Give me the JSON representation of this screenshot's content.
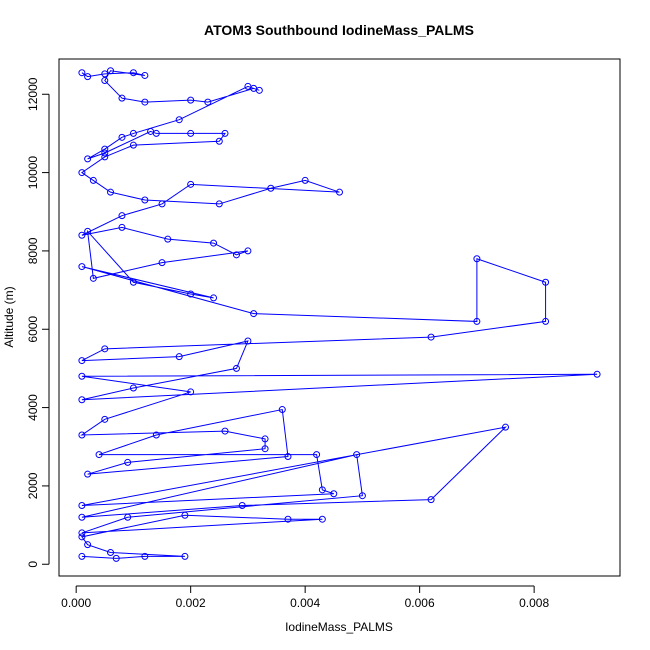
{
  "chart_data": {
    "type": "line",
    "title": "ATOM3 Southbound IodineMass_PALMS",
    "xlabel": "IodineMass_PALMS",
    "ylabel": "Altitude (m)",
    "xlim": [
      -0.0003,
      0.0095
    ],
    "ylim": [
      -300,
      12900
    ],
    "x_ticks": [
      0.0,
      0.002,
      0.004,
      0.006,
      0.008
    ],
    "x_tick_labels": [
      "0.000",
      "0.002",
      "0.004",
      "0.006",
      "0.008"
    ],
    "y_ticks": [
      0,
      2000,
      4000,
      6000,
      8000,
      10000,
      12000
    ],
    "y_tick_labels": [
      "0",
      "2000",
      "4000",
      "6000",
      "8000",
      "10000",
      "12000"
    ],
    "grid": false,
    "legend": "none",
    "series_color": "#0000ff",
    "marker": "open-circle",
    "series": [
      {
        "name": "",
        "x": [
          0.0001,
          0.0002,
          0.0005,
          0.001,
          0.0012,
          0.0006,
          0.0005,
          0.0008,
          0.0012,
          0.002,
          0.0023,
          0.0031,
          0.0032,
          0.003,
          0.0018,
          0.001,
          0.0008,
          0.0005,
          0.0002,
          0.0005,
          0.0013,
          0.0014,
          0.002,
          0.0026,
          0.0025,
          0.001,
          0.0005,
          0.0001,
          0.0003,
          0.0006,
          0.0012,
          0.0025,
          0.0034,
          0.004,
          0.0046,
          0.002,
          0.0015,
          0.0008,
          0.0001,
          0.0008,
          0.0016,
          0.0024,
          0.0028,
          0.003,
          0.0015,
          0.0003,
          0.0002,
          0.001,
          0.002,
          0.0024,
          0.0001,
          0.0031,
          0.007,
          0.007,
          0.0082,
          0.0082,
          0.0062,
          0.0005,
          0.0001,
          0.0018,
          0.003,
          0.0028,
          0.001,
          0.0001,
          0.0091,
          0.0001,
          0.002,
          0.0005,
          0.0001,
          0.0026,
          0.0033,
          0.0033,
          0.0009,
          0.0002,
          0.0037,
          0.0036,
          0.0014,
          0.0004,
          0.0042,
          0.0043,
          0.0045,
          0.0001,
          0.0075,
          0.0062,
          0.0029,
          0.0001,
          0.0049,
          0.005,
          0.0009,
          0.0001,
          0.0043,
          0.0037,
          0.0019,
          0.0001,
          0.0002,
          0.0006,
          0.0019,
          0.0012,
          0.0007,
          0.0001
        ],
        "y": [
          12550,
          12450,
          12520,
          12550,
          12480,
          12600,
          12350,
          11900,
          11800,
          11850,
          11800,
          12150,
          12100,
          12200,
          11350,
          11000,
          10900,
          10600,
          10350,
          10500,
          11050,
          11000,
          11000,
          11000,
          10800,
          10700,
          10400,
          10000,
          9800,
          9500,
          9300,
          9200,
          9600,
          9800,
          9500,
          9700,
          9200,
          8900,
          8400,
          8600,
          8300,
          8200,
          7900,
          8000,
          7700,
          7300,
          8500,
          7200,
          6900,
          6800,
          7600,
          6400,
          6200,
          7800,
          7200,
          6200,
          5800,
          5500,
          5200,
          5300,
          5700,
          5000,
          4500,
          4200,
          4850,
          4800,
          4400,
          3700,
          3300,
          3400,
          3200,
          2950,
          2600,
          2300,
          2750,
          3950,
          3300,
          2800,
          2800,
          1900,
          1800,
          1500,
          3500,
          1650,
          1500,
          1200,
          2800,
          1750,
          1200,
          800,
          1150,
          1150,
          1250,
          700,
          500,
          300,
          200,
          200,
          150,
          200
        ]
      }
    ]
  }
}
